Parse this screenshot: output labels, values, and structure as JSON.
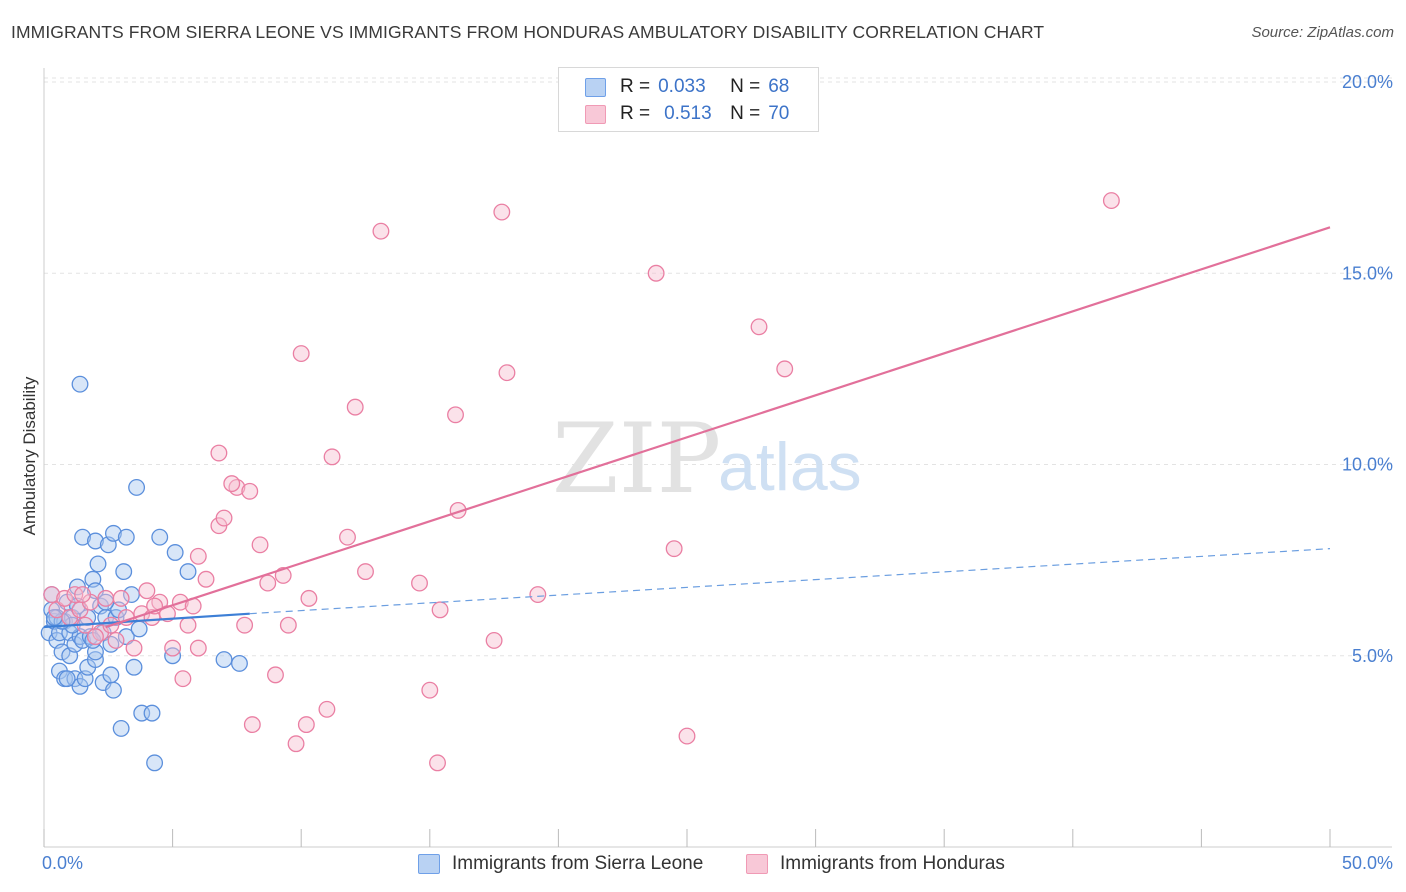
{
  "title": "IMMIGRANTS FROM SIERRA LEONE VS IMMIGRANTS FROM HONDURAS AMBULATORY DISABILITY CORRELATION CHART",
  "source": "Source: ZipAtlas.com",
  "watermark": {
    "zip": "ZIP",
    "atlas": "atlas"
  },
  "legend": {
    "r_label": "R =",
    "n_label": "N =",
    "rows": [
      {
        "r": "0.033",
        "n": "68",
        "color": "#6fa0e8",
        "fill": "#b9d2f3"
      },
      {
        "r": "0.513",
        "n": "70",
        "color": "#f09ab5",
        "fill": "#f8c8d7"
      }
    ]
  },
  "bottom_legend": [
    {
      "label": "Immigrants from Sierra Leone"
    },
    {
      "label": "Immigrants from Honduras"
    }
  ],
  "chart_data": {
    "type": "scatter",
    "title": "IMMIGRANTS FROM SIERRA LEONE VS IMMIGRANTS FROM HONDURAS AMBULATORY DISABILITY CORRELATION CHART",
    "xlabel": "",
    "ylabel": "Ambulatory Disability",
    "xlim": [
      0,
      50
    ],
    "ylim": [
      0,
      20.5
    ],
    "x_tick_labels": [
      "0.0%",
      "50.0%"
    ],
    "y_ticks": [
      5,
      10,
      15,
      20
    ],
    "y_tick_labels": [
      "5.0%",
      "10.0%",
      "15.0%",
      "20.0%"
    ],
    "grid": true,
    "series": [
      {
        "name": "Immigrants from Sierra Leone",
        "color": "#5b8fdc",
        "fill": "#a9c8f0",
        "trend": {
          "solid": [
            [
              0,
              5.75
            ],
            [
              8,
              6.1
            ]
          ],
          "dashed": [
            [
              8,
              6.1
            ],
            [
              50,
              7.8
            ]
          ]
        },
        "points": [
          [
            0.2,
            5.6
          ],
          [
            0.3,
            6.2
          ],
          [
            0.4,
            5.9
          ],
          [
            0.5,
            5.4
          ],
          [
            0.5,
            6.0
          ],
          [
            0.6,
            5.6
          ],
          [
            0.6,
            4.6
          ],
          [
            0.7,
            5.1
          ],
          [
            0.8,
            5.9
          ],
          [
            0.8,
            4.4
          ],
          [
            0.9,
            6.4
          ],
          [
            1.0,
            5.6
          ],
          [
            1.0,
            5.0
          ],
          [
            1.1,
            6.0
          ],
          [
            1.2,
            5.3
          ],
          [
            1.2,
            4.4
          ],
          [
            1.3,
            6.8
          ],
          [
            1.4,
            5.5
          ],
          [
            1.4,
            4.2
          ],
          [
            1.5,
            8.1
          ],
          [
            1.5,
            5.4
          ],
          [
            1.6,
            4.4
          ],
          [
            1.7,
            4.7
          ],
          [
            1.7,
            6.0
          ],
          [
            1.8,
            5.5
          ],
          [
            1.9,
            7.0
          ],
          [
            2.0,
            6.7
          ],
          [
            2.0,
            4.9
          ],
          [
            2.0,
            8.0
          ],
          [
            2.1,
            7.4
          ],
          [
            2.2,
            6.3
          ],
          [
            2.3,
            5.6
          ],
          [
            2.3,
            4.3
          ],
          [
            2.4,
            6.0
          ],
          [
            2.5,
            7.9
          ],
          [
            2.6,
            4.5
          ],
          [
            2.7,
            8.2
          ],
          [
            2.7,
            4.1
          ],
          [
            2.8,
            6.0
          ],
          [
            1.1,
            5.8
          ],
          [
            2.9,
            6.2
          ],
          [
            3.0,
            3.1
          ],
          [
            3.1,
            7.2
          ],
          [
            3.2,
            8.1
          ],
          [
            3.2,
            5.5
          ],
          [
            3.4,
            6.6
          ],
          [
            3.5,
            4.7
          ],
          [
            3.7,
            5.7
          ],
          [
            3.8,
            3.5
          ],
          [
            4.2,
            3.5
          ],
          [
            4.3,
            2.2
          ],
          [
            4.5,
            8.1
          ],
          [
            5.1,
            7.7
          ],
          [
            5.0,
            5.0
          ],
          [
            5.6,
            7.2
          ],
          [
            3.6,
            9.4
          ],
          [
            2.0,
            5.1
          ],
          [
            0.3,
            6.6
          ],
          [
            2.4,
            6.4
          ],
          [
            0.9,
            4.4
          ],
          [
            7.0,
            4.9
          ],
          [
            7.6,
            4.8
          ],
          [
            1.4,
            12.1
          ],
          [
            0.7,
            5.9
          ],
          [
            1.9,
            5.4
          ],
          [
            0.4,
            6.0
          ],
          [
            2.6,
            5.3
          ],
          [
            1.3,
            6.3
          ]
        ]
      },
      {
        "name": "Immigrants from Honduras",
        "color": "#ea7fa3",
        "fill": "#f6bfd1",
        "trend": {
          "solid": [
            [
              2.4,
              5.75
            ],
            [
              50,
              16.2
            ]
          ]
        },
        "points": [
          [
            0.3,
            6.6
          ],
          [
            0.5,
            6.2
          ],
          [
            0.8,
            6.5
          ],
          [
            1.0,
            6.0
          ],
          [
            1.2,
            6.6
          ],
          [
            1.4,
            6.2
          ],
          [
            1.6,
            5.8
          ],
          [
            1.8,
            6.4
          ],
          [
            2.2,
            5.6
          ],
          [
            2.4,
            6.5
          ],
          [
            2.6,
            5.8
          ],
          [
            2.8,
            5.4
          ],
          [
            3.0,
            6.5
          ],
          [
            3.2,
            6.0
          ],
          [
            3.5,
            5.2
          ],
          [
            3.8,
            6.1
          ],
          [
            4.0,
            6.7
          ],
          [
            4.2,
            6.0
          ],
          [
            4.5,
            6.4
          ],
          [
            4.8,
            6.1
          ],
          [
            5.0,
            5.2
          ],
          [
            5.3,
            6.4
          ],
          [
            5.6,
            5.8
          ],
          [
            5.8,
            6.3
          ],
          [
            6.0,
            5.2
          ],
          [
            6.3,
            7.0
          ],
          [
            6.8,
            8.4
          ],
          [
            7.0,
            8.6
          ],
          [
            7.5,
            9.4
          ],
          [
            7.8,
            5.8
          ],
          [
            8.0,
            9.3
          ],
          [
            8.4,
            7.9
          ],
          [
            8.7,
            6.9
          ],
          [
            9.0,
            4.5
          ],
          [
            9.3,
            7.1
          ],
          [
            8.1,
            3.2
          ],
          [
            9.5,
            5.8
          ],
          [
            9.8,
            2.7
          ],
          [
            10.3,
            6.5
          ],
          [
            10.2,
            3.2
          ],
          [
            11.0,
            3.6
          ],
          [
            11.2,
            10.2
          ],
          [
            12.1,
            11.5
          ],
          [
            11.8,
            8.1
          ],
          [
            12.5,
            7.2
          ],
          [
            13.1,
            16.1
          ],
          [
            14.6,
            6.9
          ],
          [
            15.0,
            4.1
          ],
          [
            15.3,
            2.2
          ],
          [
            15.4,
            6.2
          ],
          [
            16.1,
            8.8
          ],
          [
            16.0,
            11.3
          ],
          [
            17.5,
            5.4
          ],
          [
            17.8,
            16.6
          ],
          [
            18.0,
            12.4
          ],
          [
            19.2,
            6.6
          ],
          [
            23.8,
            15.0
          ],
          [
            24.5,
            7.8
          ],
          [
            25.0,
            2.9
          ],
          [
            27.8,
            13.6
          ],
          [
            28.8,
            12.5
          ],
          [
            41.5,
            16.9
          ],
          [
            10.0,
            12.9
          ],
          [
            6.8,
            10.3
          ],
          [
            7.3,
            9.5
          ],
          [
            6.0,
            7.6
          ],
          [
            4.3,
            6.3
          ],
          [
            1.5,
            6.6
          ],
          [
            2.0,
            5.5
          ],
          [
            5.4,
            4.4
          ]
        ]
      }
    ]
  }
}
